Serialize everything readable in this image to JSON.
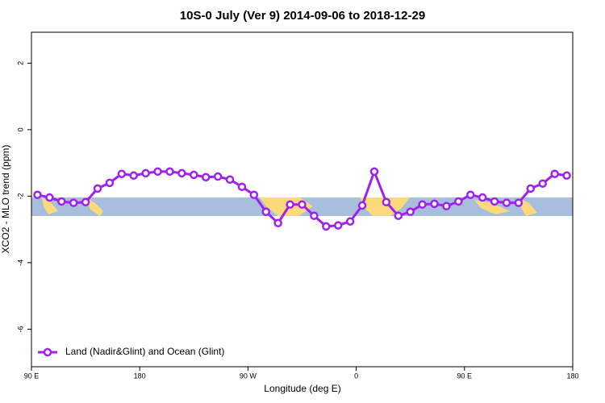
{
  "chart_data": {
    "type": "line",
    "title": "10S-0 July (Ver 9)   2014-09-06 to 2018-12-29",
    "x_label": "Longitude (deg E)",
    "y_label": "XCO2 - MLO trend (ppm)",
    "xlim": [
      90,
      540
    ],
    "xticks": [
      {
        "value": 90,
        "label": "90 E"
      },
      180,
      {
        "value": 270,
        "label": "90 W"
      },
      {
        "value": 360,
        "label": "0"
      },
      {
        "value": 450,
        "label": "90 E"
      },
      {
        "value": 540,
        "label": "180"
      }
    ],
    "ylim": [
      -7.13,
      2.93
    ],
    "yticks": [
      -6,
      -4,
      -2,
      0,
      2
    ],
    "legend": "bottomleft",
    "x": [
      95,
      105,
      115,
      125,
      135,
      145,
      155,
      165,
      175,
      185,
      195,
      205,
      215,
      225,
      235,
      245,
      255,
      265,
      275,
      285,
      295,
      305,
      315,
      325,
      335,
      345,
      355,
      365,
      375,
      385,
      395,
      405,
      415,
      425,
      435,
      445,
      455,
      465,
      475,
      485,
      495,
      505,
      515,
      525,
      535
    ],
    "series": [
      {
        "name": "Land (Nadir&Glint) and Ocean (Glint)",
        "color": "#a020f0",
        "values": [
          -1.96,
          -2.04,
          -2.16,
          -2.2,
          -2.18,
          -1.77,
          -1.6,
          -1.33,
          -1.38,
          -1.31,
          -1.26,
          -1.26,
          -1.31,
          -1.36,
          -1.43,
          -1.41,
          -1.5,
          -1.72,
          -1.96,
          -2.47,
          -2.81,
          -2.25,
          -2.25,
          -2.59,
          -2.91,
          -2.88,
          -2.76,
          -2.28,
          -1.26,
          -2.18,
          -2.59,
          -2.47,
          -2.25,
          -2.23,
          -2.3,
          -2.16,
          -1.96,
          -2.04,
          -2.16,
          -2.2,
          -2.2,
          -1.77,
          -1.62,
          -1.33,
          -1.38
        ]
      }
    ]
  }
}
